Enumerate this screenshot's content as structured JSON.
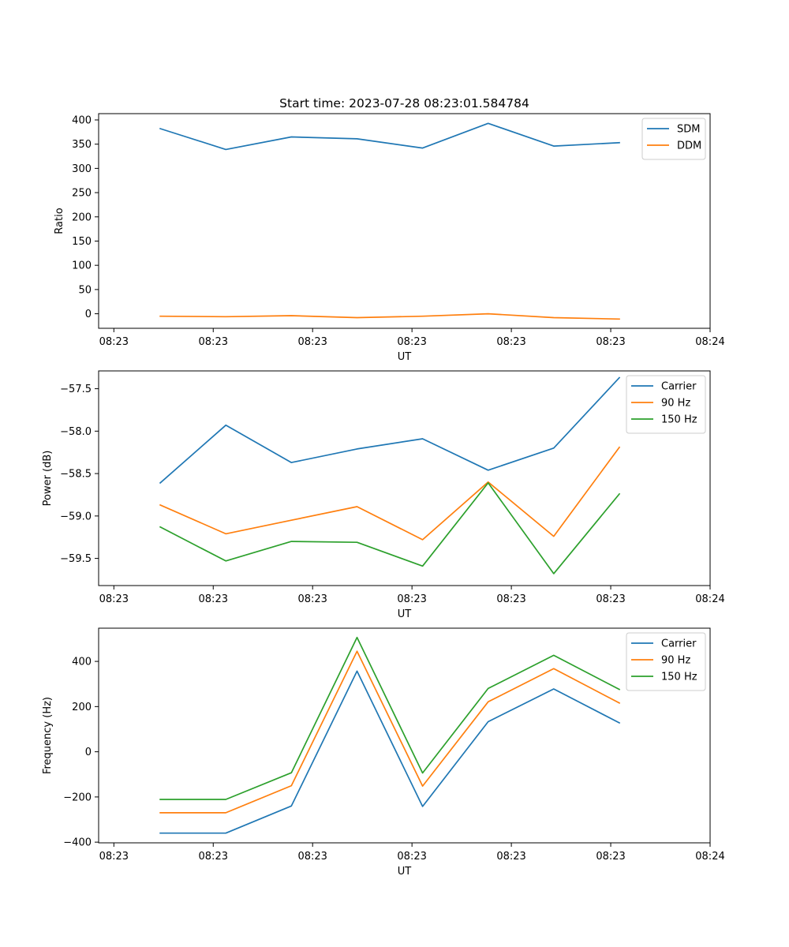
{
  "chart_data": [
    {
      "type": "line",
      "title": "Start time: 2023-07-28 08:23:01.584784",
      "xlabel": "UT",
      "ylabel": "Ratio",
      "xlim": [
        -0.23,
        9.0
      ],
      "ylim": [
        -30,
        413
      ],
      "x_ticks": [
        0,
        1.5,
        3,
        4.5,
        6,
        7.5,
        9
      ],
      "x_tick_labels": [
        "08:23",
        "08:23",
        "08:23",
        "08:23",
        "08:23",
        "08:23",
        "08:24"
      ],
      "y_ticks": [
        0,
        50,
        100,
        150,
        200,
        250,
        300,
        350,
        400
      ],
      "y_tick_labels": [
        "0",
        "50",
        "100",
        "150",
        "200",
        "250",
        "300",
        "350",
        "400"
      ],
      "legend_position": "top-right",
      "x": [
        0.7,
        1.69,
        2.68,
        3.67,
        4.66,
        5.65,
        6.64,
        7.63
      ],
      "series": [
        {
          "name": "SDM",
          "color": "#1f77b4",
          "values": [
            382,
            339,
            365,
            361,
            342,
            393,
            346,
            353
          ]
        },
        {
          "name": "DDM",
          "color": "#ff7f0e",
          "values": [
            -5,
            -6,
            -4,
            -8,
            -5,
            0,
            -8,
            -11
          ]
        }
      ]
    },
    {
      "type": "line",
      "title": "",
      "xlabel": "UT",
      "ylabel": "Power (dB)",
      "xlim": [
        -0.23,
        9.0
      ],
      "ylim": [
        -59.82,
        -57.29
      ],
      "x_ticks": [
        0,
        1.5,
        3,
        4.5,
        6,
        7.5,
        9
      ],
      "x_tick_labels": [
        "08:23",
        "08:23",
        "08:23",
        "08:23",
        "08:23",
        "08:23",
        "08:24"
      ],
      "y_ticks": [
        -59.5,
        -59.0,
        -58.5,
        -58.0,
        -57.5
      ],
      "y_tick_labels": [
        "−59.5",
        "−59.0",
        "−58.5",
        "−58.0",
        "−57.5"
      ],
      "legend_position": "top-right",
      "x": [
        0.7,
        1.69,
        2.68,
        3.67,
        4.66,
        5.65,
        6.64,
        7.63
      ],
      "series": [
        {
          "name": "Carrier",
          "color": "#1f77b4",
          "values": [
            -58.61,
            -57.93,
            -58.37,
            -58.21,
            -58.09,
            -58.46,
            -58.2,
            -57.37
          ]
        },
        {
          "name": "90 Hz",
          "color": "#ff7f0e",
          "values": [
            -58.87,
            -59.21,
            -59.05,
            -58.89,
            -59.28,
            -58.6,
            -59.24,
            -58.19
          ]
        },
        {
          "name": "150 Hz",
          "color": "#2ca02c",
          "values": [
            -59.13,
            -59.53,
            -59.3,
            -59.31,
            -59.59,
            -58.61,
            -59.68,
            -58.74
          ]
        }
      ]
    },
    {
      "type": "line",
      "title": "",
      "xlabel": "UT",
      "ylabel": "Frequency (Hz)",
      "xlim": [
        -0.23,
        9.0
      ],
      "ylim": [
        -403,
        547
      ],
      "x_ticks": [
        0,
        1.5,
        3,
        4.5,
        6,
        7.5,
        9
      ],
      "x_tick_labels": [
        "08:23",
        "08:23",
        "08:23",
        "08:23",
        "08:23",
        "08:23",
        "08:24"
      ],
      "y_ticks": [
        -400,
        -200,
        0,
        200,
        400
      ],
      "y_tick_labels": [
        "−400",
        "−200",
        "0",
        "200",
        "400"
      ],
      "legend_position": "top-right",
      "x": [
        0.7,
        1.69,
        2.68,
        3.67,
        4.66,
        5.65,
        6.64,
        7.63
      ],
      "series": [
        {
          "name": "Carrier",
          "color": "#1f77b4",
          "values": [
            -360,
            -360,
            -240,
            357,
            -242,
            133,
            278,
            128
          ]
        },
        {
          "name": "90 Hz",
          "color": "#ff7f0e",
          "values": [
            -270,
            -270,
            -150,
            445,
            -152,
            221,
            368,
            216
          ]
        },
        {
          "name": "150 Hz",
          "color": "#2ca02c",
          "values": [
            -211,
            -211,
            -93,
            506,
            -94,
            280,
            427,
            276
          ]
        }
      ]
    }
  ]
}
